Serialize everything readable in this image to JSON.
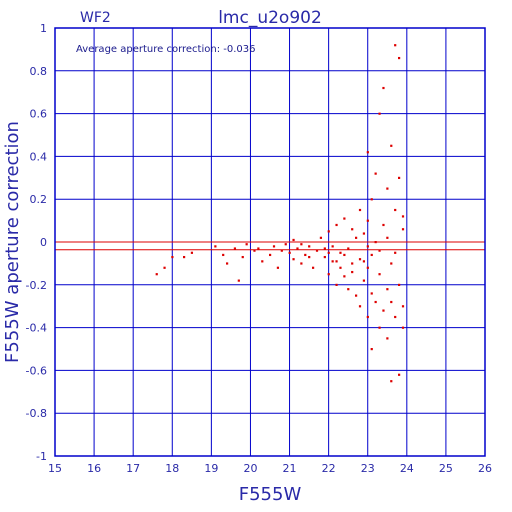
{
  "chart_data": {
    "type": "scatter",
    "title": "lmc_u2o902",
    "chip_label": "WF2",
    "annotation": "Average aperture correction: -0.036",
    "xlabel": "F555W",
    "ylabel": "F555W aperture correction",
    "xlim": [
      15,
      26
    ],
    "ylim": [
      -1,
      1
    ],
    "x_ticks": [
      15,
      16,
      17,
      18,
      19,
      20,
      21,
      22,
      23,
      24,
      25,
      26
    ],
    "y_ticks": [
      "-1",
      "-0.8",
      "-0.6",
      "-0.4",
      "-0.2",
      "0",
      "0.2",
      "0.4",
      "0.6",
      "0.8",
      "1"
    ],
    "grid": true,
    "reference_lines": [
      0,
      -0.036
    ],
    "colors": {
      "axes": "#0000cc",
      "points": "#dd0000",
      "reference_line": "#dd0000",
      "text": "#2a2aa8"
    },
    "points": [
      [
        17.6,
        -0.15
      ],
      [
        17.8,
        -0.12
      ],
      [
        18.0,
        -0.07
      ],
      [
        18.3,
        -0.07
      ],
      [
        18.5,
        -0.05
      ],
      [
        19.1,
        -0.02
      ],
      [
        19.3,
        -0.06
      ],
      [
        19.4,
        -0.1
      ],
      [
        19.6,
        -0.03
      ],
      [
        19.7,
        -0.18
      ],
      [
        19.8,
        -0.07
      ],
      [
        19.9,
        -0.01
      ],
      [
        20.1,
        -0.04
      ],
      [
        20.2,
        -0.03
      ],
      [
        20.3,
        -0.09
      ],
      [
        20.5,
        -0.06
      ],
      [
        20.6,
        -0.02
      ],
      [
        20.7,
        -0.12
      ],
      [
        20.8,
        -0.04
      ],
      [
        20.9,
        -0.01
      ],
      [
        21.0,
        -0.05
      ],
      [
        21.1,
        -0.08
      ],
      [
        21.1,
        0.01
      ],
      [
        21.2,
        -0.03
      ],
      [
        21.3,
        -0.1
      ],
      [
        21.4,
        -0.06
      ],
      [
        21.5,
        -0.02
      ],
      [
        21.6,
        -0.12
      ],
      [
        21.7,
        -0.04
      ],
      [
        21.8,
        0.02
      ],
      [
        21.9,
        -0.07
      ],
      [
        22.0,
        -0.15
      ],
      [
        22.0,
        0.05
      ],
      [
        22.1,
        -0.09
      ],
      [
        22.1,
        -0.02
      ],
      [
        22.2,
        -0.2
      ],
      [
        22.2,
        0.08
      ],
      [
        22.3,
        -0.05
      ],
      [
        22.3,
        -0.12
      ],
      [
        22.4,
        0.11
      ],
      [
        22.4,
        -0.16
      ],
      [
        22.5,
        -0.03
      ],
      [
        22.5,
        -0.22
      ],
      [
        22.6,
        0.06
      ],
      [
        22.6,
        -0.1
      ],
      [
        22.7,
        -0.25
      ],
      [
        22.7,
        0.02
      ],
      [
        22.8,
        -0.08
      ],
      [
        22.8,
        -0.3
      ],
      [
        22.8,
        0.15
      ],
      [
        22.9,
        -0.18
      ],
      [
        22.9,
        0.04
      ],
      [
        23.0,
        -0.35
      ],
      [
        23.0,
        -0.12
      ],
      [
        23.0,
        0.1
      ],
      [
        23.0,
        0.42
      ],
      [
        23.1,
        -0.5
      ],
      [
        23.1,
        -0.06
      ],
      [
        23.1,
        0.2
      ],
      [
        23.2,
        -0.28
      ],
      [
        23.2,
        0.0
      ],
      [
        23.2,
        0.32
      ],
      [
        23.3,
        -0.4
      ],
      [
        23.3,
        -0.15
      ],
      [
        23.3,
        0.6
      ],
      [
        23.4,
        -0.32
      ],
      [
        23.4,
        0.08
      ],
      [
        23.4,
        0.72
      ],
      [
        23.5,
        -0.22
      ],
      [
        23.5,
        0.25
      ],
      [
        23.5,
        -0.45
      ],
      [
        23.6,
        -0.1
      ],
      [
        23.6,
        0.45
      ],
      [
        23.6,
        -0.65
      ],
      [
        23.7,
        -0.35
      ],
      [
        23.7,
        0.15
      ],
      [
        23.7,
        0.92
      ],
      [
        23.8,
        -0.62
      ],
      [
        23.8,
        -0.2
      ],
      [
        23.8,
        0.3
      ],
      [
        23.8,
        0.86
      ],
      [
        23.9,
        -0.4
      ],
      [
        23.9,
        0.06
      ],
      [
        23.9,
        -0.3
      ],
      [
        21.3,
        -0.01
      ],
      [
        21.5,
        -0.07
      ],
      [
        21.9,
        -0.03
      ],
      [
        22.0,
        -0.05
      ],
      [
        22.2,
        -0.09
      ],
      [
        22.4,
        -0.06
      ],
      [
        22.6,
        -0.14
      ],
      [
        22.9,
        -0.09
      ],
      [
        23.0,
        -0.02
      ],
      [
        23.1,
        -0.24
      ],
      [
        23.3,
        -0.04
      ],
      [
        23.5,
        0.02
      ],
      [
        23.6,
        -0.28
      ],
      [
        23.7,
        -0.05
      ],
      [
        23.9,
        0.12
      ]
    ]
  }
}
